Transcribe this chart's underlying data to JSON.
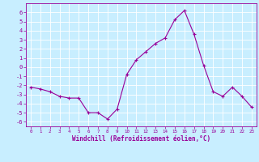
{
  "title": "",
  "xlabel": "Windchill (Refroidissement éolien,°C)",
  "ylabel": "",
  "x": [
    0,
    1,
    2,
    3,
    4,
    5,
    6,
    7,
    8,
    9,
    10,
    11,
    12,
    13,
    14,
    15,
    16,
    17,
    18,
    19,
    20,
    21,
    22,
    23
  ],
  "y": [
    -2.2,
    -2.4,
    -2.7,
    -3.2,
    -3.4,
    -3.4,
    -5.0,
    -5.0,
    -5.7,
    -4.6,
    -0.8,
    0.8,
    1.7,
    2.6,
    3.2,
    5.2,
    6.2,
    3.6,
    0.2,
    -2.7,
    -3.2,
    -2.2,
    -3.2,
    -4.4
  ],
  "line_color": "#990099",
  "marker": "+",
  "marker_size": 3,
  "background_color": "#c8eeff",
  "grid_color": "#ffffff",
  "axis_color": "#990099",
  "tick_color": "#990099",
  "label_color": "#990099",
  "ylim": [
    -6.5,
    7.0
  ],
  "xlim": [
    -0.5,
    23.5
  ],
  "yticks": [
    -6,
    -5,
    -4,
    -3,
    -2,
    -1,
    0,
    1,
    2,
    3,
    4,
    5,
    6
  ],
  "xticks": [
    0,
    1,
    2,
    3,
    4,
    5,
    6,
    7,
    8,
    9,
    10,
    11,
    12,
    13,
    14,
    15,
    16,
    17,
    18,
    19,
    20,
    21,
    22,
    23
  ],
  "xlabel_fontsize": 5.5,
  "tick_fontsize_x": 4.2,
  "tick_fontsize_y": 5.0
}
